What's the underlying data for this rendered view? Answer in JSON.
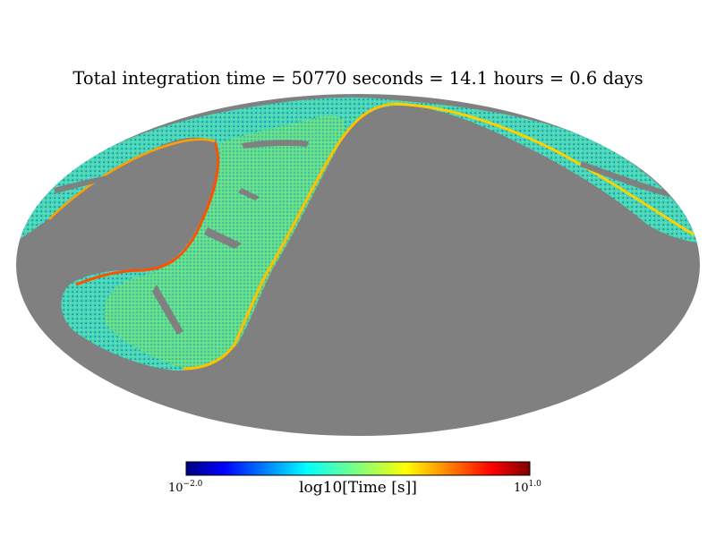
{
  "chart_data": {
    "type": "heatmap",
    "projection": "mollweide",
    "title": "Total integration time = 50770 seconds = 14.1 hours = 0.6 days",
    "colorbar": {
      "label": "log10[Time [s]]",
      "min_base": "10",
      "min_exp": "−2.0",
      "max_base": "10",
      "max_exp": "1.0",
      "min_value": -2.0,
      "max_value": 1.0,
      "colormap": "jet"
    },
    "unobserved_color": "#808080"
  },
  "colors": {
    "background": "#ffffff",
    "unobserved": "#808080",
    "coverage_low": "#2fd0c8",
    "coverage_mid": "#7ef07a",
    "coverage_high": "#ffb000",
    "coverage_edge": "#e82000"
  }
}
